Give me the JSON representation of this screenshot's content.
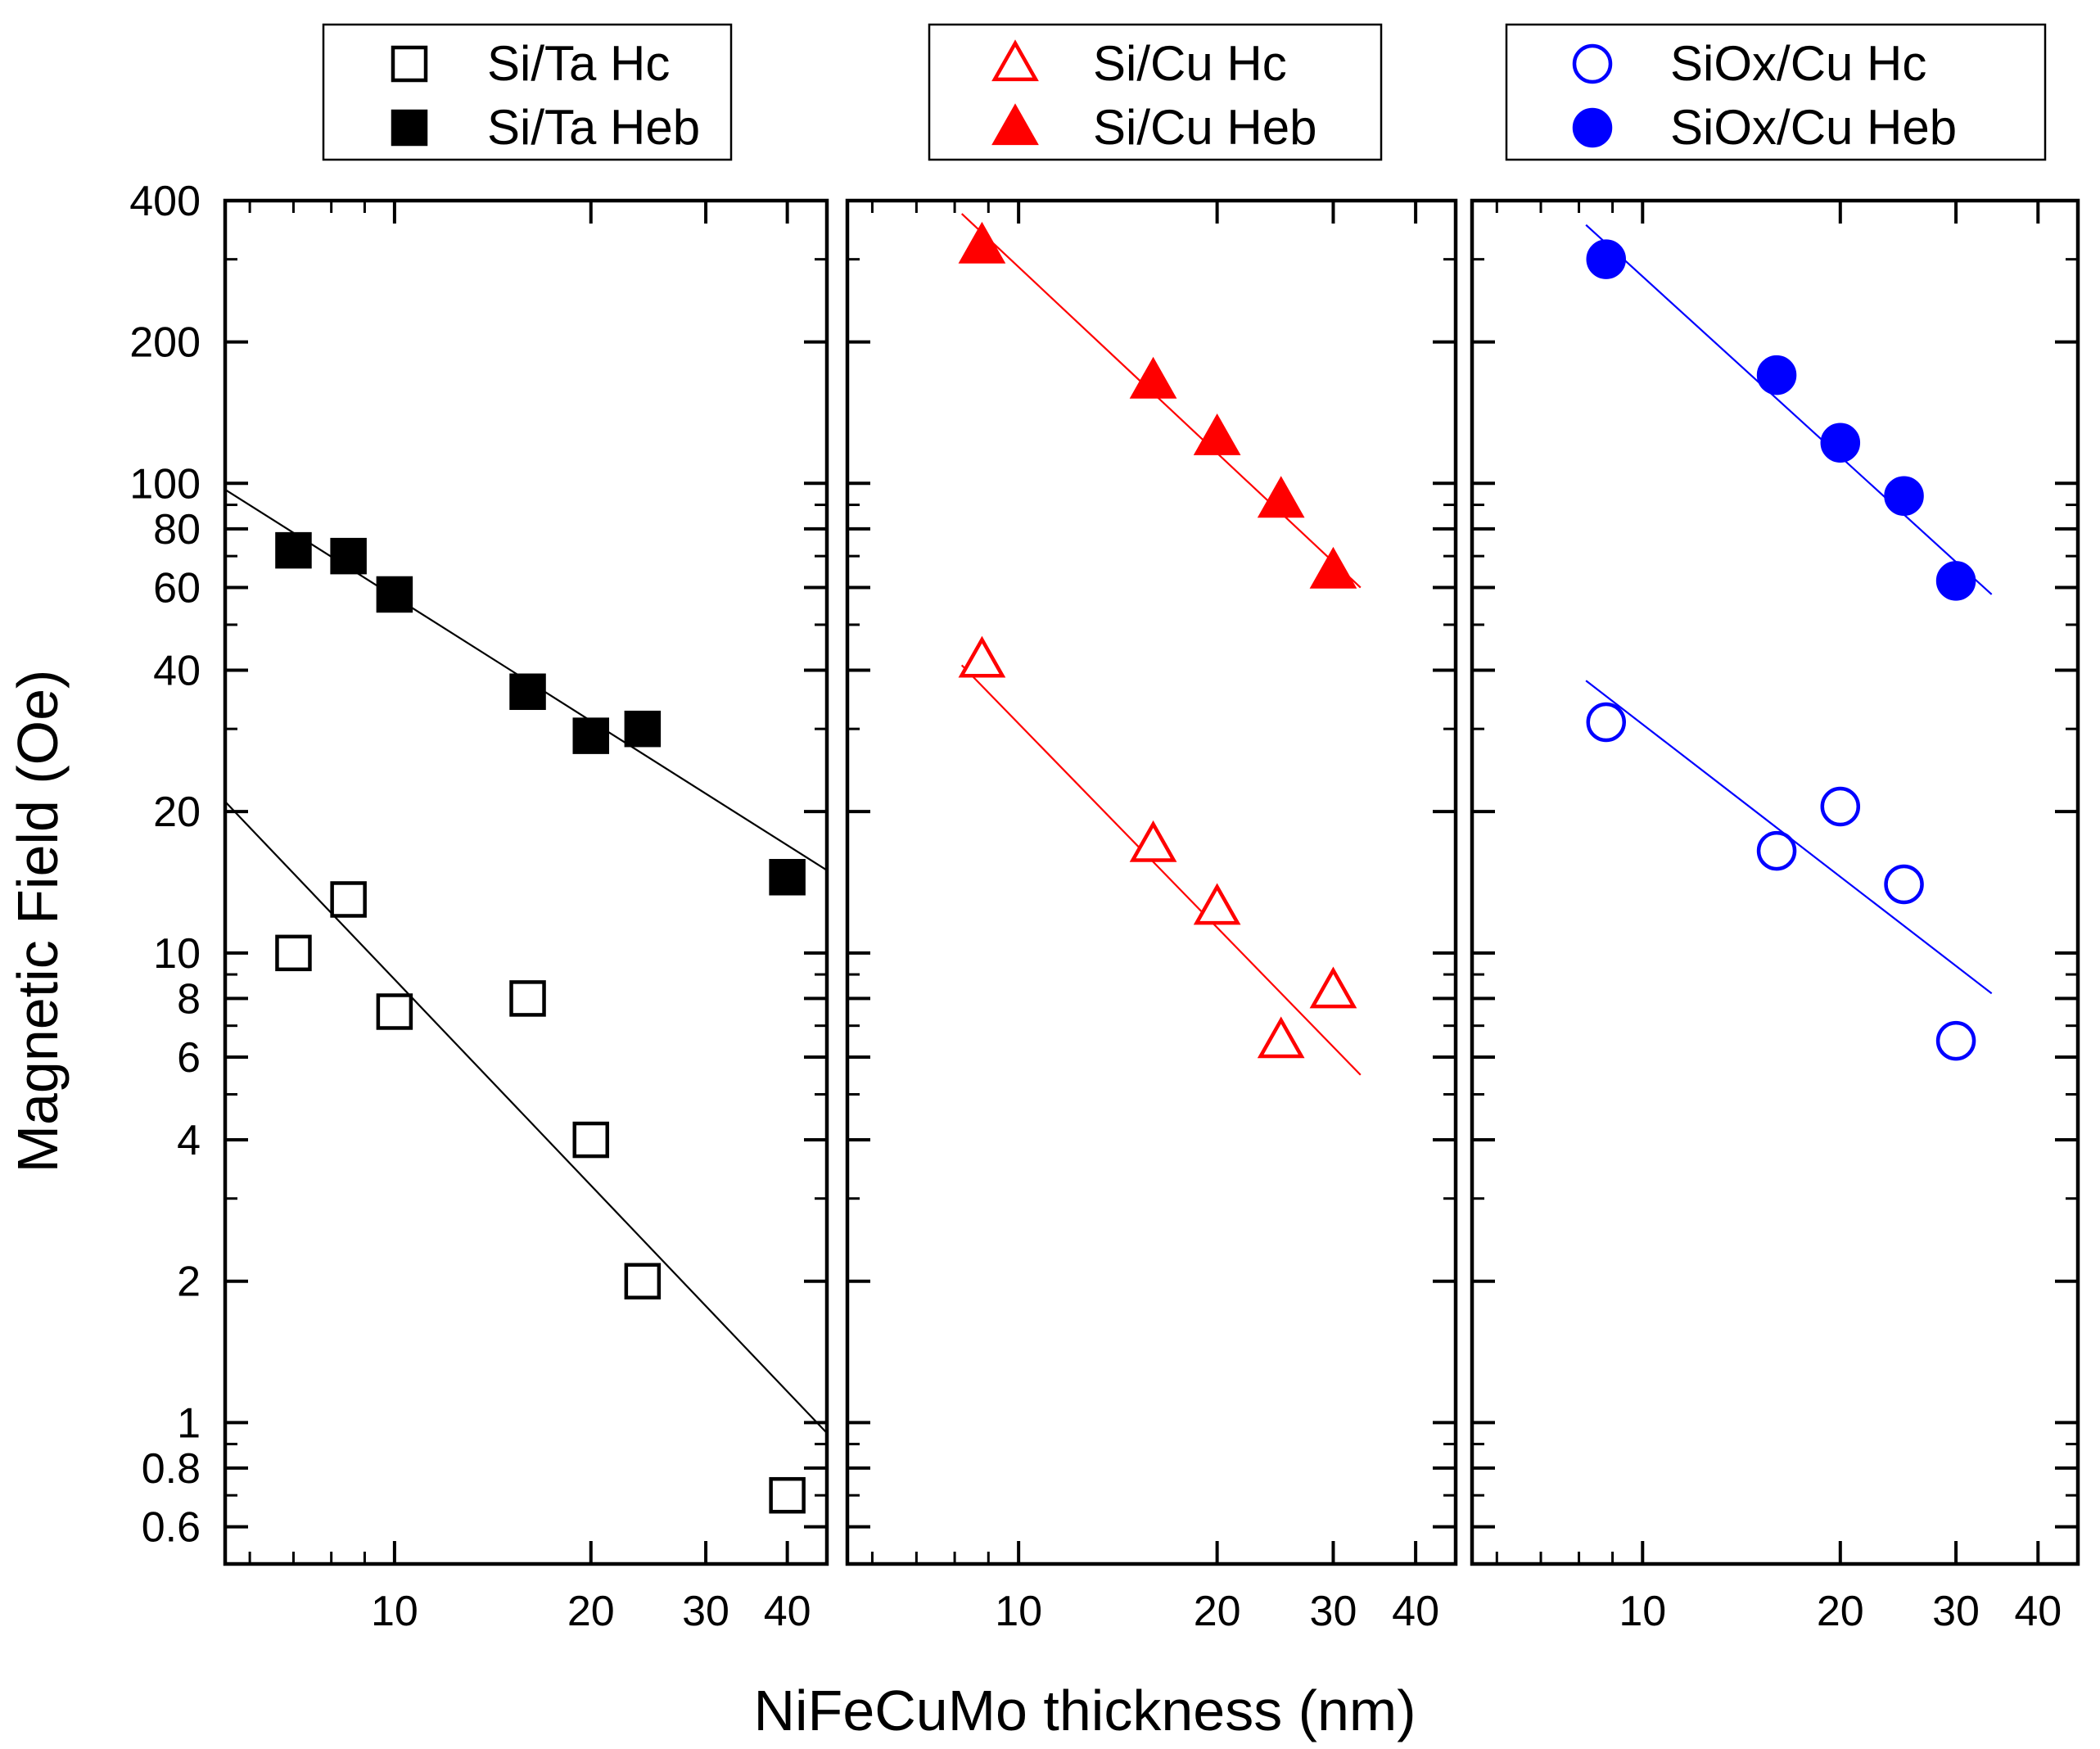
{
  "chart_data": {
    "type": "scatter",
    "ylabel": "Magnetic Field (Oe)",
    "xlabel": "NiFeCuMo thickness (nm)",
    "yscale": "log",
    "xscale": "log",
    "ylim": [
      0.5,
      400
    ],
    "yticks_major": [
      {
        "v": 400,
        "label": "400"
      },
      {
        "v": 200,
        "label": "200"
      },
      {
        "v": 100,
        "label": "100"
      },
      {
        "v": 80,
        "label": "80"
      },
      {
        "v": 60,
        "label": "60"
      },
      {
        "v": 40,
        "label": "40"
      },
      {
        "v": 20,
        "label": "20"
      },
      {
        "v": 10,
        "label": "10"
      },
      {
        "v": 8,
        "label": "8"
      },
      {
        "v": 6,
        "label": "6"
      },
      {
        "v": 4,
        "label": "4"
      },
      {
        "v": 2,
        "label": "2"
      },
      {
        "v": 1,
        "label": "1"
      },
      {
        "v": 0.8,
        "label": "0.8"
      },
      {
        "v": 0.6,
        "label": "0.6"
      }
    ],
    "panels": [
      {
        "id": "si-ta",
        "xlim": [
          5.5,
          46
        ],
        "xticks": [
          {
            "v": 10,
            "label": "10"
          },
          {
            "v": 20,
            "label": "20"
          },
          {
            "v": 30,
            "label": "30"
          },
          {
            "v": 40,
            "label": "40"
          }
        ],
        "color": "#000000",
        "legend": [
          "Si/Ta Hc",
          "Si/Ta Heb"
        ],
        "series": [
          {
            "name": "Si/Ta Hc",
            "marker": "square",
            "filled": false,
            "x": [
              7,
              8.5,
              10,
              16,
              20,
              24,
              40
            ],
            "y": [
              10,
              13,
              7.5,
              8,
              4,
              2,
              0.7
            ]
          },
          {
            "name": "Si/Ta Heb",
            "marker": "square",
            "filled": true,
            "x": [
              7,
              8.5,
              10,
              16,
              20,
              24,
              40
            ],
            "y": [
              72,
              70,
              58,
              36,
              29,
              30,
              14.5
            ]
          }
        ],
        "fits": [
          {
            "series": "Si/Ta Hc",
            "x": [
              5.5,
              46
            ],
            "y": [
              21,
              0.95
            ]
          },
          {
            "series": "Si/Ta Heb",
            "x": [
              5.5,
              46
            ],
            "y": [
              97,
              15
            ]
          }
        ]
      },
      {
        "id": "si-cu",
        "xlim": [
          5.5,
          46
        ],
        "xticks": [
          {
            "v": 10,
            "label": "10"
          },
          {
            "v": 20,
            "label": "20"
          },
          {
            "v": 30,
            "label": "30"
          },
          {
            "v": 40,
            "label": "40"
          }
        ],
        "color": "#ff0000",
        "legend": [
          "Si/Cu Hc",
          "Si/Cu Heb"
        ],
        "series": [
          {
            "name": "Si/Cu Hc",
            "marker": "triangle",
            "filled": false,
            "x": [
              8.8,
              16,
              20,
              25,
              30
            ],
            "y": [
              42,
              17,
              12.5,
              6.5,
              8.3
            ]
          },
          {
            "name": "Si/Cu Heb",
            "marker": "triangle",
            "filled": true,
            "x": [
              8.8,
              16,
              20,
              25,
              30
            ],
            "y": [
              320,
              165,
              125,
              92,
              65
            ]
          }
        ],
        "fits": [
          {
            "series": "Si/Cu Hc",
            "x": [
              8.2,
              33
            ],
            "y": [
              41,
              5.5
            ]
          },
          {
            "series": "Si/Cu Heb",
            "x": [
              8.2,
              33
            ],
            "y": [
              375,
              60
            ]
          }
        ]
      },
      {
        "id": "siox-cu",
        "xlim": [
          5.5,
          46
        ],
        "xticks": [
          {
            "v": 10,
            "label": "10"
          },
          {
            "v": 20,
            "label": "20"
          },
          {
            "v": 30,
            "label": "30"
          },
          {
            "v": 40,
            "label": "40"
          }
        ],
        "color": "#0000ff",
        "legend": [
          "SiOx/Cu Hc",
          "SiOx/Cu Heb"
        ],
        "series": [
          {
            "name": "SiOx/Cu Hc",
            "marker": "circle",
            "filled": false,
            "x": [
              8.8,
              16,
              20,
              25,
              30
            ],
            "y": [
              31,
              16.5,
              20.5,
              14,
              6.5
            ]
          },
          {
            "name": "SiOx/Cu Heb",
            "marker": "circle",
            "filled": true,
            "x": [
              8.8,
              16,
              20,
              25,
              30
            ],
            "y": [
              300,
              170,
              122,
              94,
              62
            ]
          }
        ],
        "fits": [
          {
            "series": "SiOx/Cu Hc",
            "x": [
              8.2,
              34
            ],
            "y": [
              38,
              8.2
            ]
          },
          {
            "series": "SiOx/Cu Heb",
            "x": [
              8.2,
              34
            ],
            "y": [
              355,
              58
            ]
          }
        ]
      }
    ]
  }
}
